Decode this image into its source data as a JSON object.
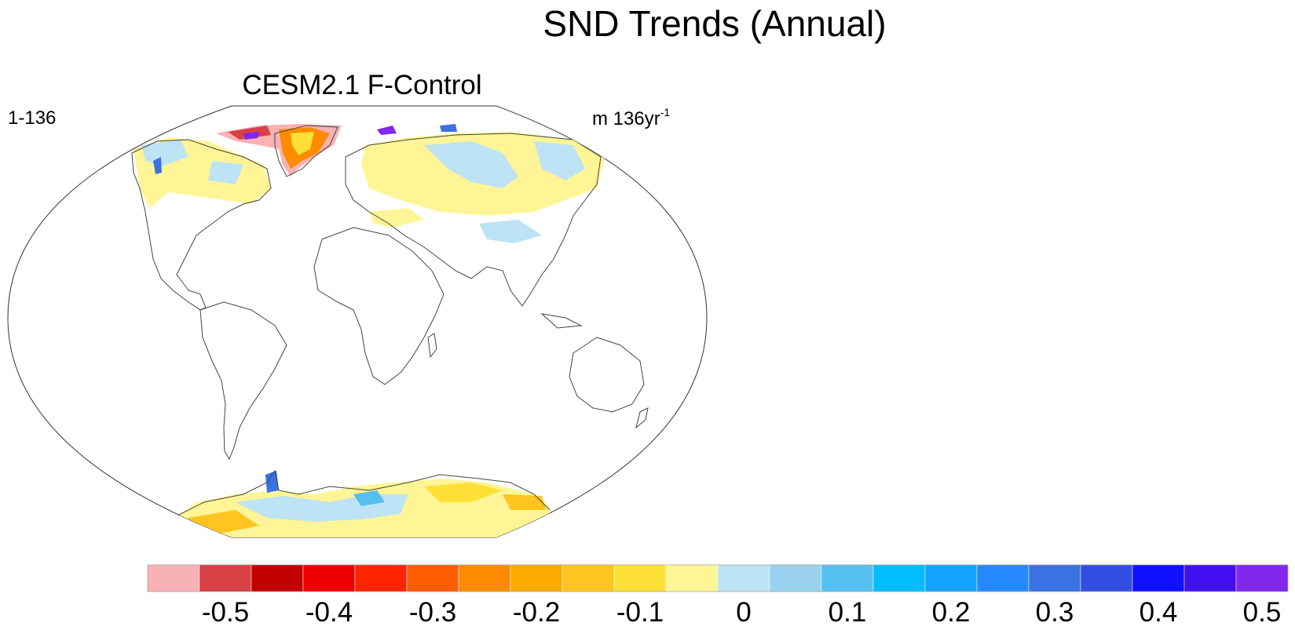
{
  "title": "SND Trends (Annual)",
  "panel": {
    "title": "CESM2.1 F-Control",
    "left_label": "1-136",
    "units_prefix": "m 136yr",
    "units_exponent": "-1"
  },
  "map_regions": [
    {
      "name": "greenland",
      "trend": "strong negative"
    },
    {
      "name": "canadian-arctic-archipelago",
      "trend": "mixed negative/positive"
    },
    {
      "name": "north-america",
      "trend": "weak mixed"
    },
    {
      "name": "eurasia",
      "trend": "weak mixed"
    },
    {
      "name": "antarctica",
      "trend": "mixed"
    }
  ],
  "colorbar": {
    "colors": [
      "#f8b2b5",
      "#d84043",
      "#c20000",
      "#ec0000",
      "#ff2300",
      "#ff5c00",
      "#ff8b00",
      "#ffaa00",
      "#ffc41f",
      "#ffe036",
      "#fff596",
      "#bde3f4",
      "#99d1ee",
      "#55c0ef",
      "#00bdff",
      "#16a2ff",
      "#2688ff",
      "#3b71e3",
      "#324ee0",
      "#0f10ff",
      "#4210f0",
      "#8227ec"
    ],
    "tick_labels": [
      "-0.5",
      "-0.4",
      "-0.3",
      "-0.2",
      "-0.1",
      "0",
      "0.1",
      "0.2",
      "0.3",
      "0.4",
      "0.5"
    ]
  }
}
